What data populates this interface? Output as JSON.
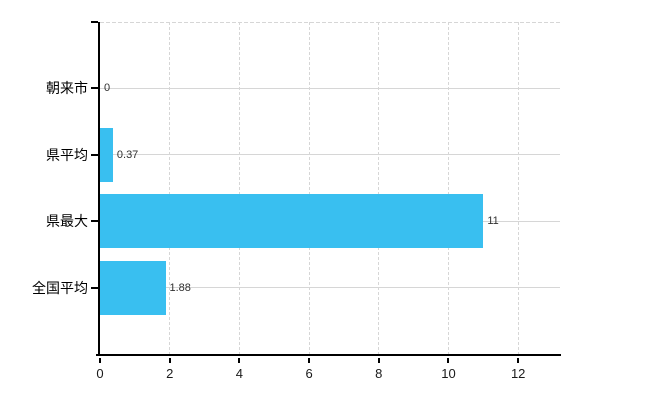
{
  "chart_data": {
    "type": "bar",
    "orientation": "horizontal",
    "title": "",
    "xlabel": "",
    "ylabel": "",
    "categories": [
      "朝来市",
      "県平均",
      "県最大",
      "全国平均"
    ],
    "values": [
      0,
      0.37,
      11,
      1.88
    ],
    "value_labels": [
      "0",
      "0.37",
      "11",
      "1.88"
    ],
    "x_ticks": [
      0,
      2,
      4,
      6,
      8,
      10,
      12
    ],
    "xlim": [
      0,
      13.2
    ],
    "grid": true,
    "legend": false,
    "colors": {
      "bar": "#39bff0",
      "grid": "#d6d6d6",
      "axis": "#000000",
      "text": "#000000",
      "value_text": "#303030"
    }
  }
}
